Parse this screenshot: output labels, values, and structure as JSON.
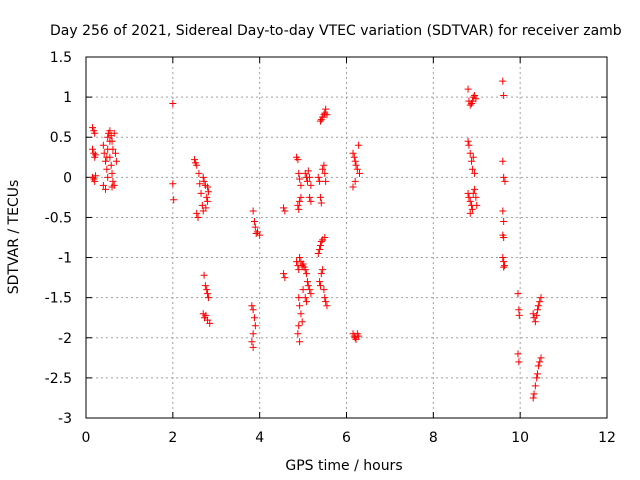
{
  "chart_data": {
    "type": "scatter",
    "title": "Day 256 of 2021, Sidereal Day-to-day VTEC variation (SDTVAR) for receiver zamb",
    "xlabel": "GPS time / hours",
    "ylabel": "SDTVAR / TECUs",
    "xlim": [
      0,
      12
    ],
    "ylim": [
      -3,
      1.5
    ],
    "xticks": [
      0,
      2,
      4,
      6,
      8,
      10,
      12
    ],
    "yticks": [
      -3,
      -2.5,
      -2,
      -1.5,
      -1,
      -0.5,
      0,
      0.5,
      1,
      1.5
    ],
    "xtick_labels": [
      "0",
      "2",
      "4",
      "6",
      "8",
      "10",
      "12"
    ],
    "ytick_labels": [
      "-3",
      "-2.5",
      "-2",
      "-1.5",
      "-1",
      "-0.5",
      "0",
      "0.5",
      "1",
      "1.5"
    ],
    "grid": true,
    "marker": "+",
    "color": "#ff0000",
    "series": [
      {
        "name": "SDTVAR",
        "points": [
          [
            0.15,
            0.62
          ],
          [
            0.18,
            0.58
          ],
          [
            0.2,
            0.55
          ],
          [
            0.15,
            0.35
          ],
          [
            0.18,
            0.3
          ],
          [
            0.2,
            0.25
          ],
          [
            0.22,
            0.28
          ],
          [
            0.15,
            0.0
          ],
          [
            0.18,
            -0.02
          ],
          [
            0.2,
            -0.05
          ],
          [
            0.22,
            0.02
          ],
          [
            0.4,
            0.4
          ],
          [
            0.42,
            0.3
          ],
          [
            0.45,
            0.2
          ],
          [
            0.48,
            0.1
          ],
          [
            0.4,
            -0.1
          ],
          [
            0.45,
            -0.15
          ],
          [
            0.5,
            0.0
          ],
          [
            0.5,
            0.5
          ],
          [
            0.52,
            0.55
          ],
          [
            0.55,
            0.58
          ],
          [
            0.58,
            0.52
          ],
          [
            0.6,
            0.45
          ],
          [
            0.62,
            0.35
          ],
          [
            0.55,
            0.25
          ],
          [
            0.58,
            0.15
          ],
          [
            0.6,
            0.05
          ],
          [
            0.62,
            -0.05
          ],
          [
            0.65,
            -0.1
          ],
          [
            0.68,
            0.3
          ],
          [
            0.7,
            0.2
          ],
          [
            0.55,
            0.45
          ],
          [
            0.5,
            0.35
          ],
          [
            0.48,
            0.25
          ],
          [
            0.65,
            0.55
          ],
          [
            0.6,
            -0.12
          ],
          [
            2.0,
            0.92
          ],
          [
            2.0,
            -0.08
          ],
          [
            2.02,
            -0.28
          ],
          [
            2.5,
            0.22
          ],
          [
            2.52,
            0.18
          ],
          [
            2.55,
            0.15
          ],
          [
            2.55,
            -0.45
          ],
          [
            2.58,
            -0.5
          ],
          [
            2.6,
            0.05
          ],
          [
            2.62,
            -0.08
          ],
          [
            2.65,
            -0.2
          ],
          [
            2.68,
            -0.35
          ],
          [
            2.7,
            0.0
          ],
          [
            2.72,
            -0.05
          ],
          [
            2.75,
            -0.1
          ],
          [
            2.8,
            -0.12
          ],
          [
            2.82,
            -0.18
          ],
          [
            2.78,
            -0.25
          ],
          [
            2.8,
            -0.3
          ],
          [
            2.76,
            -0.38
          ],
          [
            2.7,
            -0.42
          ],
          [
            2.72,
            -1.22
          ],
          [
            2.75,
            -1.35
          ],
          [
            2.78,
            -1.4
          ],
          [
            2.8,
            -1.45
          ],
          [
            2.82,
            -1.5
          ],
          [
            2.7,
            -1.7
          ],
          [
            2.73,
            -1.75
          ],
          [
            2.76,
            -1.72
          ],
          [
            2.8,
            -1.78
          ],
          [
            2.85,
            -1.82
          ],
          [
            3.85,
            -0.42
          ],
          [
            3.88,
            -0.55
          ],
          [
            3.9,
            -0.62
          ],
          [
            3.95,
            -0.68
          ],
          [
            4.0,
            -0.72
          ],
          [
            3.92,
            -0.7
          ],
          [
            3.82,
            -1.6
          ],
          [
            3.85,
            -1.65
          ],
          [
            3.88,
            -1.75
          ],
          [
            3.9,
            -1.85
          ],
          [
            3.85,
            -1.95
          ],
          [
            3.82,
            -2.05
          ],
          [
            3.85,
            -2.12
          ],
          [
            4.55,
            -0.38
          ],
          [
            4.58,
            -0.42
          ],
          [
            4.55,
            -1.2
          ],
          [
            4.58,
            -1.25
          ],
          [
            4.85,
            0.25
          ],
          [
            4.88,
            0.22
          ],
          [
            4.9,
            0.05
          ],
          [
            4.92,
            -0.02
          ],
          [
            4.95,
            -0.1
          ],
          [
            4.88,
            -0.35
          ],
          [
            4.9,
            -0.4
          ],
          [
            4.92,
            -0.3
          ],
          [
            4.95,
            -0.25
          ],
          [
            4.85,
            -1.05
          ],
          [
            4.88,
            -1.1
          ],
          [
            4.9,
            -1.15
          ],
          [
            4.92,
            -1.0
          ],
          [
            4.95,
            -1.05
          ],
          [
            4.98,
            -1.1
          ],
          [
            5.0,
            -1.08
          ],
          [
            5.02,
            -1.12
          ],
          [
            5.05,
            -1.15
          ],
          [
            5.08,
            -1.2
          ],
          [
            4.9,
            -1.5
          ],
          [
            4.92,
            -1.6
          ],
          [
            4.95,
            -1.7
          ],
          [
            4.98,
            -1.8
          ],
          [
            4.9,
            -1.85
          ],
          [
            4.88,
            -1.95
          ],
          [
            4.92,
            -2.05
          ],
          [
            5.05,
            0.05
          ],
          [
            5.08,
            0.0
          ],
          [
            5.1,
            -0.05
          ],
          [
            5.12,
            0.08
          ],
          [
            5.15,
            0.0
          ],
          [
            5.18,
            -0.1
          ],
          [
            5.15,
            -0.25
          ],
          [
            5.18,
            -0.3
          ],
          [
            5.1,
            -1.3
          ],
          [
            5.12,
            -1.35
          ],
          [
            5.15,
            -1.4
          ],
          [
            5.18,
            -1.45
          ],
          [
            5.05,
            -1.5
          ],
          [
            5.08,
            -1.55
          ],
          [
            5.0,
            -1.4
          ],
          [
            5.35,
            0.0
          ],
          [
            5.38,
            -0.05
          ],
          [
            5.4,
            -0.25
          ],
          [
            5.42,
            -0.32
          ],
          [
            5.45,
            0.1
          ],
          [
            5.48,
            0.15
          ],
          [
            5.5,
            0.05
          ],
          [
            5.52,
            -0.05
          ],
          [
            5.4,
            0.7
          ],
          [
            5.42,
            0.72
          ],
          [
            5.45,
            0.75
          ],
          [
            5.48,
            0.78
          ],
          [
            5.5,
            0.8
          ],
          [
            5.52,
            0.85
          ],
          [
            5.55,
            0.78
          ],
          [
            5.35,
            -0.95
          ],
          [
            5.38,
            -0.9
          ],
          [
            5.4,
            -0.85
          ],
          [
            5.42,
            -0.8
          ],
          [
            5.45,
            -0.78
          ],
          [
            5.5,
            -0.75
          ],
          [
            5.38,
            -1.3
          ],
          [
            5.4,
            -1.35
          ],
          [
            5.42,
            -1.2
          ],
          [
            5.45,
            -1.15
          ],
          [
            5.48,
            -1.4
          ],
          [
            5.5,
            -1.5
          ],
          [
            5.52,
            -1.55
          ],
          [
            5.55,
            -1.6
          ],
          [
            6.15,
            0.3
          ],
          [
            6.18,
            0.25
          ],
          [
            6.2,
            0.2
          ],
          [
            6.22,
            0.15
          ],
          [
            6.25,
            0.1
          ],
          [
            6.28,
            0.4
          ],
          [
            6.3,
            0.05
          ],
          [
            6.15,
            -0.12
          ],
          [
            6.2,
            -0.05
          ],
          [
            6.15,
            -1.95
          ],
          [
            6.18,
            -1.98
          ],
          [
            6.2,
            -2.0
          ],
          [
            6.22,
            -2.02
          ],
          [
            6.25,
            -1.95
          ],
          [
            6.28,
            -1.98
          ],
          [
            8.8,
            1.1
          ],
          [
            8.82,
            0.95
          ],
          [
            8.85,
            0.9
          ],
          [
            8.88,
            0.92
          ],
          [
            8.9,
            0.95
          ],
          [
            8.92,
            1.0
          ],
          [
            8.95,
            1.02
          ],
          [
            8.98,
            0.98
          ],
          [
            8.8,
            0.45
          ],
          [
            8.82,
            0.4
          ],
          [
            8.85,
            0.3
          ],
          [
            8.88,
            0.2
          ],
          [
            8.9,
            0.1
          ],
          [
            8.92,
            0.25
          ],
          [
            8.95,
            0.05
          ],
          [
            8.8,
            -0.2
          ],
          [
            8.82,
            -0.25
          ],
          [
            8.85,
            -0.3
          ],
          [
            8.88,
            -0.35
          ],
          [
            8.9,
            -0.4
          ],
          [
            8.92,
            -0.2
          ],
          [
            8.95,
            -0.15
          ],
          [
            8.98,
            -0.25
          ],
          [
            9.0,
            -0.35
          ],
          [
            8.85,
            -0.45
          ],
          [
            9.6,
            1.2
          ],
          [
            9.62,
            1.02
          ],
          [
            9.6,
            0.2
          ],
          [
            9.62,
            0.0
          ],
          [
            9.65,
            -0.05
          ],
          [
            9.6,
            -0.42
          ],
          [
            9.62,
            -0.55
          ],
          [
            9.6,
            -0.72
          ],
          [
            9.62,
            -0.75
          ],
          [
            9.6,
            -1.0
          ],
          [
            9.62,
            -1.05
          ],
          [
            9.64,
            -1.1
          ],
          [
            9.62,
            -1.12
          ],
          [
            9.95,
            -1.45
          ],
          [
            9.97,
            -1.65
          ],
          [
            9.98,
            -1.72
          ],
          [
            9.95,
            -2.2
          ],
          [
            9.97,
            -2.3
          ],
          [
            10.3,
            -1.7
          ],
          [
            10.32,
            -1.75
          ],
          [
            10.35,
            -1.8
          ],
          [
            10.38,
            -1.72
          ],
          [
            10.4,
            -1.65
          ],
          [
            10.42,
            -1.6
          ],
          [
            10.45,
            -1.55
          ],
          [
            10.48,
            -1.5
          ],
          [
            10.3,
            -2.75
          ],
          [
            10.32,
            -2.7
          ],
          [
            10.35,
            -2.6
          ],
          [
            10.38,
            -2.5
          ],
          [
            10.4,
            -2.45
          ],
          [
            10.42,
            -2.35
          ],
          [
            10.45,
            -2.3
          ],
          [
            10.48,
            -2.25
          ]
        ]
      }
    ]
  }
}
